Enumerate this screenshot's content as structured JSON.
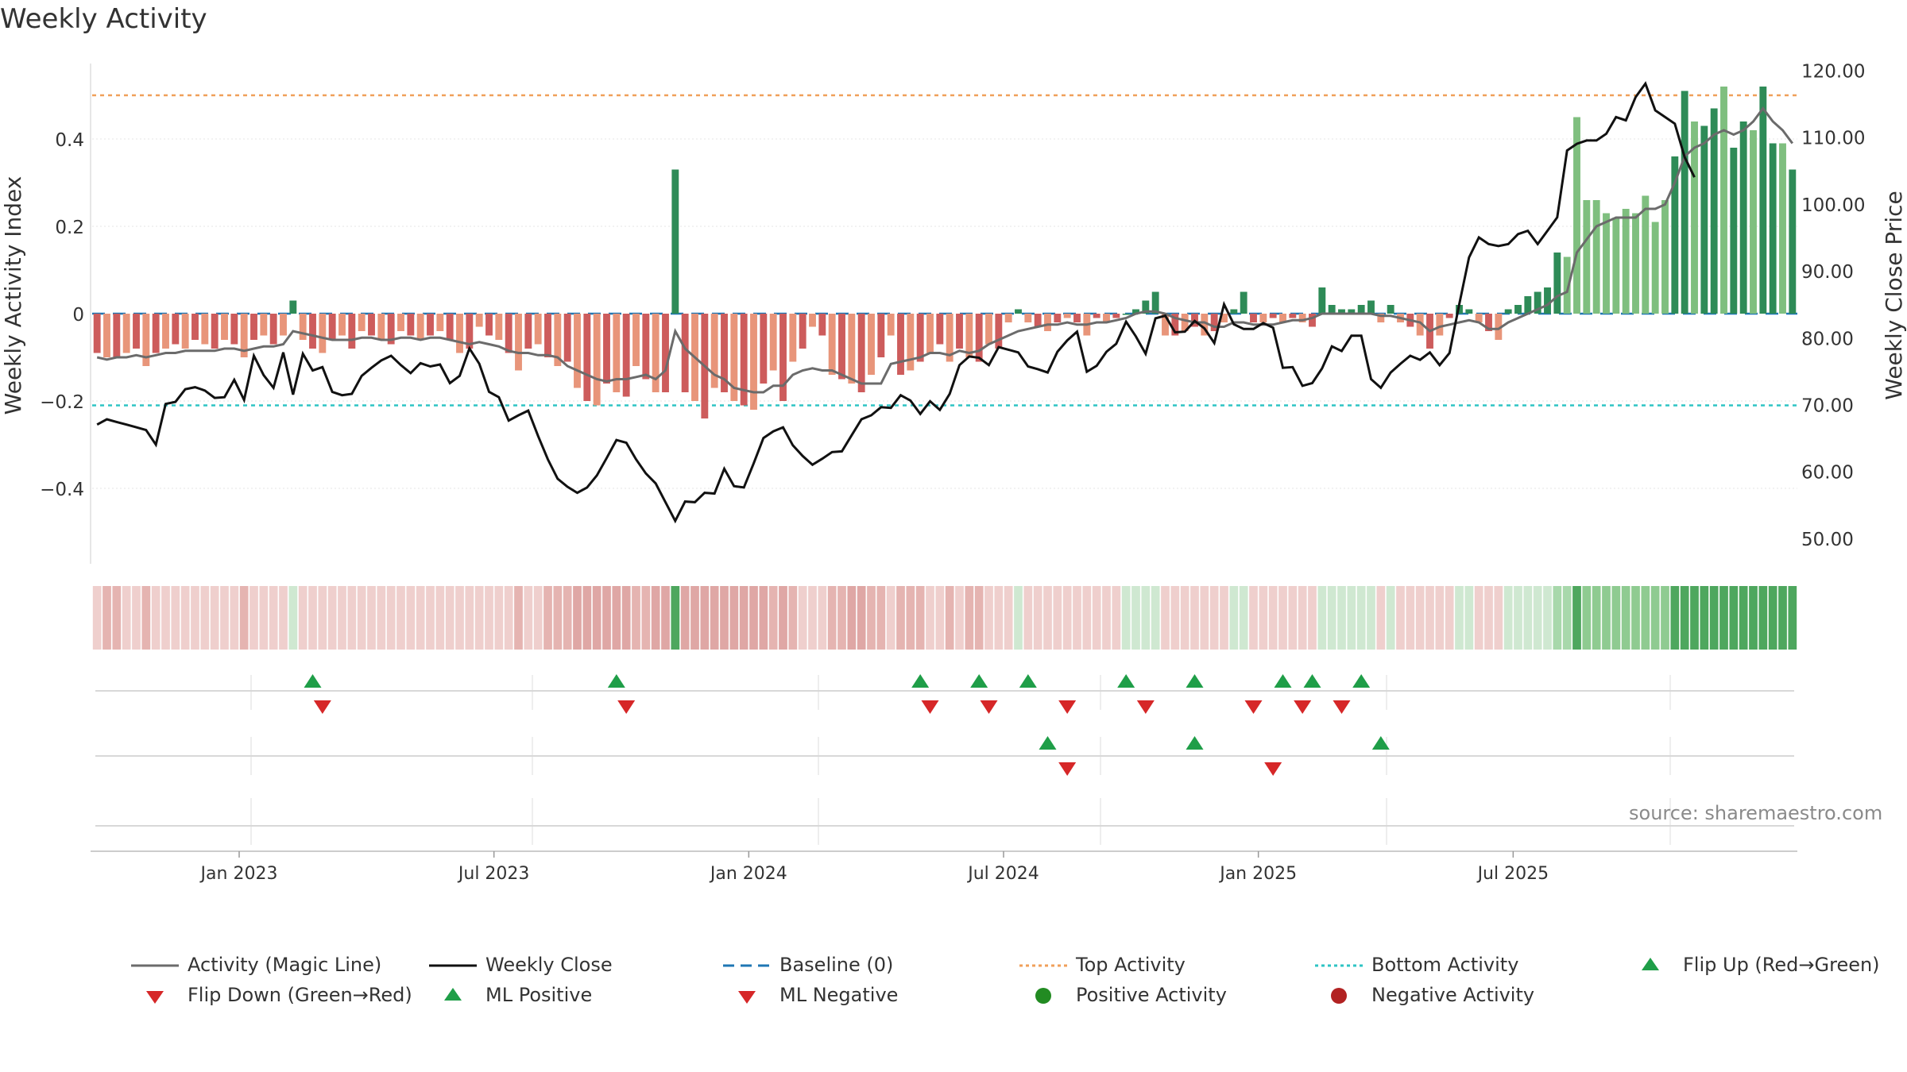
{
  "title": "Weekly Activity",
  "source_note": "source: sharemaestro.com",
  "colors": {
    "pos_strong": "#2e8b57",
    "pos_light": "#7fbf7f",
    "neg_strong": "#cd5c5c",
    "neg_light": "#e8957a",
    "magic_line": "#6b6b6b",
    "close_line": "#111111",
    "baseline": "#1f77b4",
    "top": "#f0a05a",
    "bottom": "#2ec4c4",
    "flip_up": "#1f9e48",
    "flip_down": "#d62728",
    "pos_dot": "#228b22",
    "neg_dot": "#b22222"
  },
  "chart_data": {
    "type": "bar+line",
    "title": "Weekly Activity",
    "ylabel_left": "Weekly Activity Index",
    "ylabel_right": "Weekly Close Price",
    "y_left_ticks": [
      "0.4",
      "0.2",
      "0",
      "−0.2",
      "−0.4"
    ],
    "y_left_tick_values": [
      0.4,
      0.2,
      0,
      -0.2,
      -0.4
    ],
    "y_left_range": [
      -0.56,
      0.56
    ],
    "y_right_ticks": [
      "120.00",
      "110.00",
      "100.00",
      "90.00",
      "80.00",
      "70.00",
      "60.00",
      "50.00"
    ],
    "y_right_tick_values": [
      120,
      110,
      100,
      90,
      80,
      70,
      60,
      50
    ],
    "y_right_range": [
      48.2,
      122.8
    ],
    "x_ticks": [
      "Jan 2023",
      "Jul 2023",
      "Jan 2024",
      "Jul 2024",
      "Jan 2025",
      "Jul 2025"
    ],
    "x_tick_weeks": [
      14.5,
      40.5,
      66.5,
      92.5,
      118.5,
      144.5
    ],
    "top_activity": 0.5,
    "bottom_activity": -0.21,
    "baseline": 0,
    "activity": [
      -0.09,
      -0.1,
      -0.1,
      -0.09,
      -0.08,
      -0.12,
      -0.09,
      -0.08,
      -0.07,
      -0.08,
      -0.06,
      -0.07,
      -0.08,
      -0.06,
      -0.07,
      -0.1,
      -0.06,
      -0.05,
      -0.07,
      -0.05,
      0.03,
      -0.06,
      -0.08,
      -0.09,
      -0.06,
      -0.05,
      -0.08,
      -0.04,
      -0.05,
      -0.06,
      -0.07,
      -0.04,
      -0.05,
      -0.06,
      -0.05,
      -0.04,
      -0.06,
      -0.09,
      -0.08,
      -0.03,
      -0.05,
      -0.06,
      -0.09,
      -0.13,
      -0.08,
      -0.07,
      -0.1,
      -0.12,
      -0.11,
      -0.17,
      -0.2,
      -0.21,
      -0.16,
      -0.18,
      -0.19,
      -0.12,
      -0.15,
      -0.18,
      -0.18,
      0.33,
      -0.18,
      -0.2,
      -0.24,
      -0.17,
      -0.18,
      -0.2,
      -0.21,
      -0.22,
      -0.16,
      -0.13,
      -0.2,
      -0.11,
      -0.08,
      -0.03,
      -0.05,
      -0.14,
      -0.15,
      -0.16,
      -0.18,
      -0.14,
      -0.1,
      -0.05,
      -0.14,
      -0.13,
      -0.11,
      -0.09,
      -0.07,
      -0.11,
      -0.08,
      -0.1,
      -0.11,
      -0.07,
      -0.08,
      -0.02,
      0.01,
      -0.02,
      -0.03,
      -0.04,
      -0.02,
      -0.01,
      -0.02,
      -0.05,
      -0.01,
      -0.02,
      -0.01,
      0.0,
      0.01,
      0.03,
      0.05,
      -0.05,
      -0.05,
      -0.04,
      -0.03,
      -0.05,
      -0.04,
      -0.02,
      0.01,
      0.05,
      -0.02,
      -0.02,
      -0.01,
      -0.02,
      -0.01,
      -0.02,
      -0.03,
      0.06,
      0.02,
      0.01,
      0.01,
      0.02,
      0.03,
      -0.02,
      0.02,
      -0.02,
      -0.03,
      -0.05,
      -0.08,
      -0.05,
      -0.01,
      0.02,
      0.01,
      -0.02,
      -0.04,
      -0.06,
      0.01,
      0.02,
      0.04,
      0.05,
      0.06,
      0.14,
      0.13,
      0.45,
      0.26,
      0.26,
      0.23,
      0.22,
      0.24,
      0.23,
      0.27,
      0.21,
      0.26,
      0.36,
      0.51,
      0.44,
      0.43,
      0.47,
      0.52,
      0.38,
      0.44,
      0.42,
      0.52,
      0.39,
      0.39,
      0.33
    ],
    "magic_line": [
      -0.1,
      -0.105,
      -0.1,
      -0.1,
      -0.095,
      -0.1,
      -0.095,
      -0.09,
      -0.09,
      -0.085,
      -0.085,
      -0.085,
      -0.085,
      -0.08,
      -0.08,
      -0.085,
      -0.08,
      -0.075,
      -0.075,
      -0.07,
      -0.04,
      -0.045,
      -0.05,
      -0.055,
      -0.06,
      -0.06,
      -0.06,
      -0.055,
      -0.055,
      -0.06,
      -0.06,
      -0.055,
      -0.055,
      -0.06,
      -0.055,
      -0.055,
      -0.06,
      -0.065,
      -0.07,
      -0.065,
      -0.07,
      -0.075,
      -0.085,
      -0.09,
      -0.09,
      -0.095,
      -0.095,
      -0.1,
      -0.12,
      -0.13,
      -0.14,
      -0.15,
      -0.155,
      -0.15,
      -0.15,
      -0.145,
      -0.14,
      -0.15,
      -0.13,
      -0.04,
      -0.08,
      -0.1,
      -0.12,
      -0.14,
      -0.15,
      -0.17,
      -0.175,
      -0.18,
      -0.18,
      -0.165,
      -0.165,
      -0.14,
      -0.13,
      -0.125,
      -0.13,
      -0.13,
      -0.14,
      -0.15,
      -0.16,
      -0.16,
      -0.16,
      -0.115,
      -0.11,
      -0.105,
      -0.1,
      -0.09,
      -0.09,
      -0.095,
      -0.085,
      -0.09,
      -0.085,
      -0.07,
      -0.06,
      -0.05,
      -0.04,
      -0.035,
      -0.03,
      -0.025,
      -0.025,
      -0.02,
      -0.025,
      -0.025,
      -0.02,
      -0.02,
      -0.015,
      -0.01,
      0.0,
      0.005,
      0.005,
      0.0,
      -0.01,
      -0.015,
      -0.02,
      -0.02,
      -0.03,
      -0.03,
      -0.02,
      -0.02,
      -0.025,
      -0.025,
      -0.025,
      -0.02,
      -0.015,
      -0.015,
      -0.01,
      0.0,
      0.0,
      0.0,
      0.0,
      0.0,
      0.0,
      -0.005,
      -0.005,
      -0.01,
      -0.015,
      -0.02,
      -0.04,
      -0.03,
      -0.025,
      -0.02,
      -0.015,
      -0.02,
      -0.035,
      -0.035,
      -0.02,
      -0.01,
      0.0,
      0.01,
      0.02,
      0.04,
      0.05,
      0.14,
      0.17,
      0.2,
      0.21,
      0.22,
      0.22,
      0.22,
      0.24,
      0.24,
      0.25,
      0.3,
      0.36,
      0.38,
      0.39,
      0.41,
      0.42,
      0.41,
      0.42,
      0.44,
      0.47,
      0.44,
      0.42,
      0.39
    ],
    "weekly_close": [
      67,
      67.8,
      67.4,
      67,
      66.6,
      66.2,
      64,
      70.1,
      70.4,
      72.3,
      72.6,
      72.1,
      71,
      71.1,
      73.7,
      70.7,
      77.3,
      74.4,
      72.5,
      77.8,
      71.5,
      77.6,
      75.1,
      75.6,
      71.9,
      71.4,
      71.6,
      74.3,
      75.5,
      76.6,
      77.3,
      75.9,
      74.7,
      76.2,
      75.7,
      76,
      73.2,
      74.3,
      78.4,
      76.1,
      71.9,
      71.1,
      67.6,
      68.4,
      69.1,
      65.3,
      61.8,
      58.9,
      57.7,
      56.8,
      57.6,
      59.4,
      62,
      64.7,
      64.3,
      61.8,
      59.7,
      58.2,
      55.4,
      52.6,
      55.5,
      55.4,
      56.8,
      56.7,
      60.4,
      57.8,
      57.6,
      61.2,
      65,
      66,
      66.6,
      63.9,
      62.3,
      61,
      61.9,
      62.9,
      63,
      65.4,
      67.8,
      68.4,
      69.6,
      69.5,
      71.4,
      70.6,
      68.6,
      70.5,
      69.2,
      71.6,
      75.9,
      77.2,
      77,
      75.9,
      78.6,
      78.2,
      77.8,
      75.7,
      75.3,
      74.8,
      77.9,
      79.6,
      80.9,
      74.9,
      75.8,
      77.9,
      79.1,
      82.4,
      80.2,
      77.6,
      82.9,
      83.3,
      80.8,
      80.9,
      82.5,
      81.4,
      79.2,
      85,
      82,
      81.3,
      81.3,
      82.2,
      81.5,
      75.5,
      75.6,
      72.8,
      73.2,
      75.4,
      78.7,
      78,
      80.3,
      80.3,
      73.8,
      72.5,
      74.8,
      76.1,
      77.3,
      76.7,
      77.8,
      75.9,
      77.7,
      85,
      92,
      95,
      94,
      93.7,
      94,
      95.5,
      96,
      94,
      96,
      98,
      108,
      109,
      109.5,
      109.5,
      110.5,
      113,
      112.5,
      116,
      118,
      114,
      113,
      112,
      107,
      104
    ]
  },
  "heatstrip": {
    "label": "weekly activity heat strip"
  },
  "markers": {
    "row1_up": [
      22,
      53,
      84,
      90,
      95,
      105,
      112,
      121,
      124,
      129
    ],
    "row1_down": [
      23,
      54,
      85,
      91,
      99,
      107,
      118,
      123,
      127
    ],
    "row2_up": [
      97,
      112,
      131
    ],
    "row2_down": [
      99,
      120
    ]
  },
  "legend": {
    "items": [
      {
        "label": "Activity (Magic Line)",
        "kind": "line-solid-gray"
      },
      {
        "label": "Weekly Close",
        "kind": "line-solid-black"
      },
      {
        "label": "Baseline (0)",
        "kind": "line-dash-blue"
      },
      {
        "label": "Top Activity",
        "kind": "line-dot-orange"
      },
      {
        "label": "Bottom Activity",
        "kind": "line-dot-cyan"
      },
      {
        "label": "Flip Up (Red→Green)",
        "kind": "triangle-up-green"
      },
      {
        "label": "Flip Down (Green→Red)",
        "kind": "triangle-down-red"
      },
      {
        "label": "ML Positive",
        "kind": "triangle-up-green"
      },
      {
        "label": "ML Negative",
        "kind": "triangle-down-red"
      },
      {
        "label": "Positive Activity",
        "kind": "dot-green"
      },
      {
        "label": "Negative Activity",
        "kind": "dot-red"
      }
    ]
  }
}
